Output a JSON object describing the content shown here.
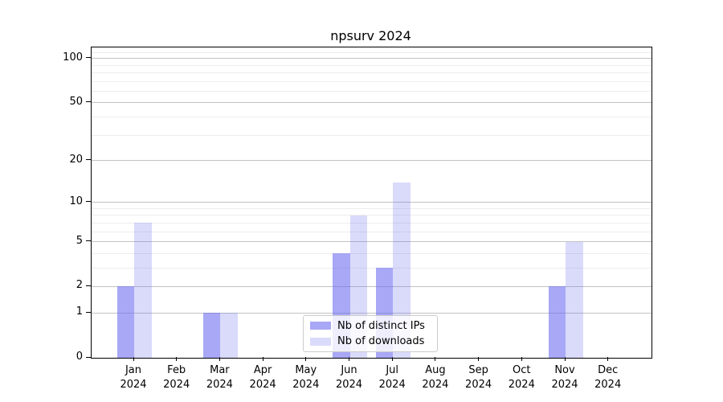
{
  "chart_data": {
    "type": "bar",
    "title": "npsurv 2024",
    "x_labels": [
      {
        "line1": "Jan",
        "line2": "2024"
      },
      {
        "line1": "Feb",
        "line2": "2024"
      },
      {
        "line1": "Mar",
        "line2": "2024"
      },
      {
        "line1": "Apr",
        "line2": "2024"
      },
      {
        "line1": "May",
        "line2": "2024"
      },
      {
        "line1": "Jun",
        "line2": "2024"
      },
      {
        "line1": "Jul",
        "line2": "2024"
      },
      {
        "line1": "Aug",
        "line2": "2024"
      },
      {
        "line1": "Sep",
        "line2": "2024"
      },
      {
        "line1": "Oct",
        "line2": "2024"
      },
      {
        "line1": "Nov",
        "line2": "2024"
      },
      {
        "line1": "Dec",
        "line2": "2024"
      }
    ],
    "series": [
      {
        "name": "Nb of distinct IPs",
        "color": "rgba(102,102,240,0.57)",
        "hex": "#a6a6f6",
        "values": [
          2,
          0,
          1,
          0,
          0,
          4,
          3,
          0,
          0,
          0,
          2,
          0
        ]
      },
      {
        "name": "Nb of downloads",
        "color": "rgba(102,102,240,0.245)",
        "hex": "#d9d9fa",
        "values": [
          7,
          0,
          1,
          0,
          0,
          8,
          14,
          0,
          0,
          0,
          5,
          0
        ]
      }
    ],
    "y_axis": {
      "scale": "log1p",
      "ticks_major": [
        0,
        1,
        2,
        5,
        10,
        20,
        50,
        100
      ],
      "ticks_minor": [
        3,
        4,
        6,
        7,
        8,
        9,
        30,
        40,
        60,
        70,
        80,
        90,
        110
      ],
      "ylim": [
        0,
        119
      ]
    },
    "legend": {
      "position": "lower center"
    }
  },
  "colors": {
    "background": "#ffffff",
    "grid_major": "#c2c2c2",
    "grid_minor": "#ededed",
    "spine": "#000000",
    "text": "#000000",
    "legend_border": "#cccccc"
  }
}
